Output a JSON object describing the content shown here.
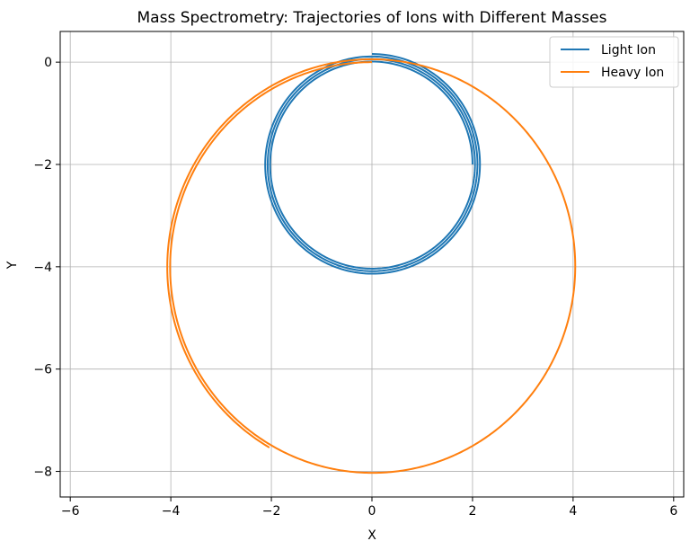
{
  "chart_data": {
    "type": "line",
    "title": "Mass Spectrometry: Trajectories of Ions with Different Masses",
    "xlabel": "X",
    "ylabel": "Y",
    "xlim": [
      -6.2,
      6.2
    ],
    "ylim": [
      -8.5,
      0.6
    ],
    "xticks": [
      -6,
      -4,
      -2,
      0,
      2,
      4,
      6
    ],
    "xtick_labels": [
      "−6",
      "−4",
      "−2",
      "0",
      "2",
      "4",
      "6"
    ],
    "yticks": [
      0,
      -2,
      -4,
      -6,
      -8
    ],
    "ytick_labels": [
      "0",
      "−2",
      "−4",
      "−6",
      "−8"
    ],
    "grid": true,
    "legend_position": "top-right",
    "series": [
      {
        "name": "Light Ion",
        "color": "#1f77b4",
        "center": [
          0,
          -2
        ],
        "r_start": 2.0,
        "r_end": 2.16,
        "theta_start_deg": 0,
        "theta_end_deg": 1170,
        "direction": "counterclockwise"
      },
      {
        "name": "Heavy Ion",
        "color": "#ff7f0e",
        "center": [
          0,
          -4
        ],
        "r_start": 4.0,
        "r_end": 4.08,
        "theta_start_deg": 90,
        "theta_end_deg": 600,
        "direction": "counterclockwise"
      }
    ]
  }
}
